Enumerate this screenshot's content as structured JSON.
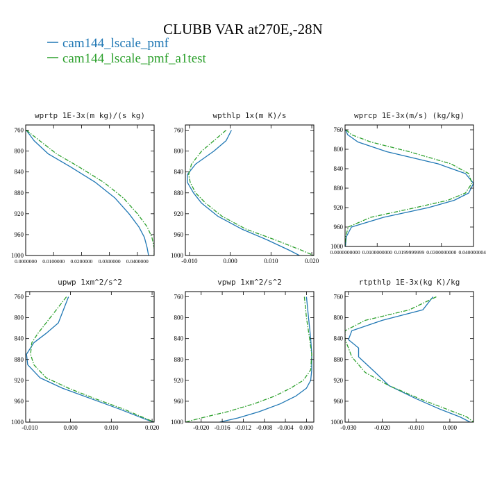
{
  "figure": {
    "title": "CLUBB VAR at270E,-28N",
    "legend": [
      {
        "name": "cam144_lscale_pmf",
        "color": "#1f77b4",
        "dash": "solid"
      },
      {
        "name": "cam144_lscale_pmf_a1test",
        "color": "#2ca02c",
        "dash": "dashdot"
      }
    ]
  },
  "chart_data": [
    {
      "type": "line",
      "title": "wprtp  1E-3x(m kg)/(s kg)",
      "xlim": [
        0,
        0.046
      ],
      "ylim": [
        1000,
        750
      ],
      "xticks": [
        0,
        0.01,
        0.02,
        0.03,
        0.04
      ],
      "xtick_labels": [
        "0.0000000",
        "0.0100000",
        "0.0200000",
        "0.0300000",
        "0.0400000"
      ],
      "yticks": [
        760,
        800,
        840,
        880,
        920,
        960,
        1000
      ],
      "series": [
        {
          "name": "cam144_lscale_pmf",
          "x": [
            0.0002,
            0.003,
            0.008,
            0.016,
            0.025,
            0.032,
            0.037,
            0.0405,
            0.0425,
            0.0435,
            0.044
          ],
          "y": [
            760,
            780,
            805,
            830,
            860,
            890,
            920,
            945,
            965,
            985,
            1000
          ]
        },
        {
          "name": "cam144_lscale_pmf_a1test",
          "x": [
            0.0002,
            0.005,
            0.011,
            0.019,
            0.028,
            0.035,
            0.04,
            0.0435,
            0.0452,
            0.046,
            0.046
          ],
          "y": [
            760,
            780,
            805,
            830,
            860,
            890,
            920,
            945,
            965,
            985,
            1000
          ]
        }
      ]
    },
    {
      "type": "line",
      "title": "wpthlp  1x(m K)/s",
      "xlim": [
        -0.011,
        0.0205
      ],
      "ylim": [
        1000,
        750
      ],
      "xticks": [
        -0.01,
        0.0,
        0.01,
        0.02
      ],
      "xtick_labels": [
        "-0.010",
        "0.000",
        "0.010",
        "0.020"
      ],
      "yticks": [
        760,
        800,
        840,
        880,
        920,
        960,
        1000
      ],
      "series": [
        {
          "name": "cam144_lscale_pmf",
          "x": [
            0.0003,
            -0.001,
            -0.004,
            -0.0085,
            -0.0105,
            -0.0105,
            -0.009,
            -0.007,
            -0.003,
            0.003,
            0.009,
            0.0145,
            0.017
          ],
          "y": [
            760,
            780,
            800,
            825,
            845,
            860,
            880,
            900,
            925,
            950,
            970,
            990,
            1000
          ]
        },
        {
          "name": "cam144_lscale_pmf_a1test",
          "x": [
            -0.001,
            -0.004,
            -0.007,
            -0.0095,
            -0.0102,
            -0.0098,
            -0.0085,
            -0.006,
            -0.002,
            0.004,
            0.011,
            0.0175,
            0.0205
          ],
          "y": [
            760,
            780,
            800,
            825,
            845,
            860,
            880,
            900,
            925,
            950,
            970,
            990,
            1000
          ]
        }
      ]
    },
    {
      "type": "line",
      "title": "wprcp  1E-3x(m/s) (kg/kg)",
      "xlim": [
        0,
        0.040000004
      ],
      "ylim": [
        1000,
        750
      ],
      "xticks": [
        0,
        0.01,
        0.02,
        0.03,
        0.04
      ],
      "xtick_labels": [
        "0.0000000000",
        "0.0100000000",
        "0.0199999999",
        "0.0300000000",
        "0.0400000040"
      ],
      "yticks": [
        760,
        800,
        840,
        880,
        920,
        960,
        1000
      ],
      "series": [
        {
          "name": "cam144_lscale_pmf",
          "x": [
            0.0002,
            0.0008,
            0.004,
            0.013,
            0.029,
            0.0375,
            0.04,
            0.0385,
            0.034,
            0.026,
            0.012,
            0.002,
            0.0004,
            0.0001
          ],
          "y": [
            760,
            770,
            785,
            805,
            830,
            850,
            870,
            890,
            905,
            920,
            940,
            960,
            980,
            1000
          ]
        },
        {
          "name": "cam144_lscale_pmf_a1test",
          "x": [
            0.0003,
            0.002,
            0.008,
            0.02,
            0.033,
            0.0385,
            0.0395,
            0.0375,
            0.032,
            0.022,
            0.008,
            0.001,
            0.0002,
            0.0001
          ],
          "y": [
            760,
            770,
            785,
            805,
            830,
            850,
            870,
            890,
            905,
            920,
            940,
            960,
            980,
            1000
          ]
        }
      ]
    },
    {
      "type": "line",
      "title": "upwp  1xm^2/s^2",
      "xlim": [
        -0.011,
        0.0205
      ],
      "ylim": [
        1000,
        750
      ],
      "xticks": [
        -0.01,
        0.0,
        0.01,
        0.02
      ],
      "xtick_labels": [
        "-0.010",
        "0.000",
        "0.010",
        "0.020"
      ],
      "yticks": [
        760,
        800,
        840,
        880,
        920,
        960,
        1000
      ],
      "series": [
        {
          "name": "cam144_lscale_pmf",
          "x": [
            -0.0005,
            -0.0015,
            -0.003,
            -0.006,
            -0.009,
            -0.0108,
            -0.0105,
            -0.0075,
            -0.002,
            0.005,
            0.012,
            0.0185,
            0.0205
          ],
          "y": [
            760,
            780,
            810,
            830,
            848,
            870,
            890,
            915,
            935,
            955,
            975,
            995,
            1000
          ]
        },
        {
          "name": "cam144_lscale_pmf_a1test",
          "x": [
            -0.001,
            -0.003,
            -0.006,
            -0.008,
            -0.0095,
            -0.0098,
            -0.009,
            -0.006,
            -0.0005,
            0.006,
            0.013,
            0.019,
            0.0205
          ],
          "y": [
            760,
            780,
            810,
            830,
            848,
            870,
            890,
            915,
            935,
            955,
            975,
            995,
            1000
          ]
        }
      ]
    },
    {
      "type": "line",
      "title": "vpwp  1xm^2/s^2",
      "xlim": [
        -0.023,
        0.0014
      ],
      "ylim": [
        1000,
        750
      ],
      "xticks": [
        -0.02,
        -0.016,
        -0.012,
        -0.008,
        -0.004,
        0.0
      ],
      "xtick_labels": [
        "-0.020",
        "-0.016",
        "-0.012",
        "-0.008",
        "-0.004",
        "0.000"
      ],
      "yticks": [
        760,
        800,
        840,
        880,
        920,
        960,
        1000
      ],
      "series": [
        {
          "name": "cam144_lscale_pmf",
          "x": [
            0.0,
            0.0004,
            0.0008,
            0.001,
            0.001,
            0.0008,
            0.0,
            -0.002,
            -0.005,
            -0.009,
            -0.013,
            -0.0165
          ],
          "y": [
            760,
            800,
            840,
            870,
            900,
            920,
            935,
            950,
            965,
            980,
            992,
            1000
          ]
        },
        {
          "name": "cam144_lscale_pmf_a1test",
          "x": [
            -0.0004,
            0.0,
            0.0006,
            0.001,
            0.0008,
            -0.0006,
            -0.003,
            -0.006,
            -0.01,
            -0.015,
            -0.02,
            -0.023
          ],
          "y": [
            760,
            800,
            840,
            870,
            900,
            920,
            935,
            950,
            965,
            980,
            992,
            1000
          ]
        }
      ]
    },
    {
      "type": "line",
      "title": "rtpthlp  1E-3x(kg K)/kg",
      "xlim": [
        -0.031,
        0.007
      ],
      "ylim": [
        1000,
        750
      ],
      "xticks": [
        -0.03,
        -0.02,
        -0.01,
        0.0
      ],
      "xtick_labels": [
        "-0.030",
        "-0.020",
        "-0.010",
        "0.000"
      ],
      "yticks": [
        760,
        800,
        840,
        880,
        920,
        960,
        1000
      ],
      "series": [
        {
          "name": "cam144_lscale_pmf",
          "x": [
            -0.005,
            -0.008,
            -0.02,
            -0.029,
            -0.03,
            -0.027,
            -0.027,
            -0.022,
            -0.018,
            -0.01,
            -0.003,
            0.003,
            0.006
          ],
          "y": [
            760,
            785,
            805,
            825,
            842,
            858,
            875,
            905,
            930,
            955,
            975,
            990,
            1000
          ]
        },
        {
          "name": "cam144_lscale_pmf_a1test",
          "x": [
            -0.004,
            -0.012,
            -0.025,
            -0.031,
            -0.031,
            -0.03,
            -0.029,
            -0.025,
            -0.018,
            -0.009,
            -0.001,
            0.005,
            0.007
          ],
          "y": [
            760,
            785,
            805,
            825,
            842,
            858,
            875,
            905,
            930,
            955,
            975,
            990,
            1000
          ]
        }
      ]
    }
  ]
}
